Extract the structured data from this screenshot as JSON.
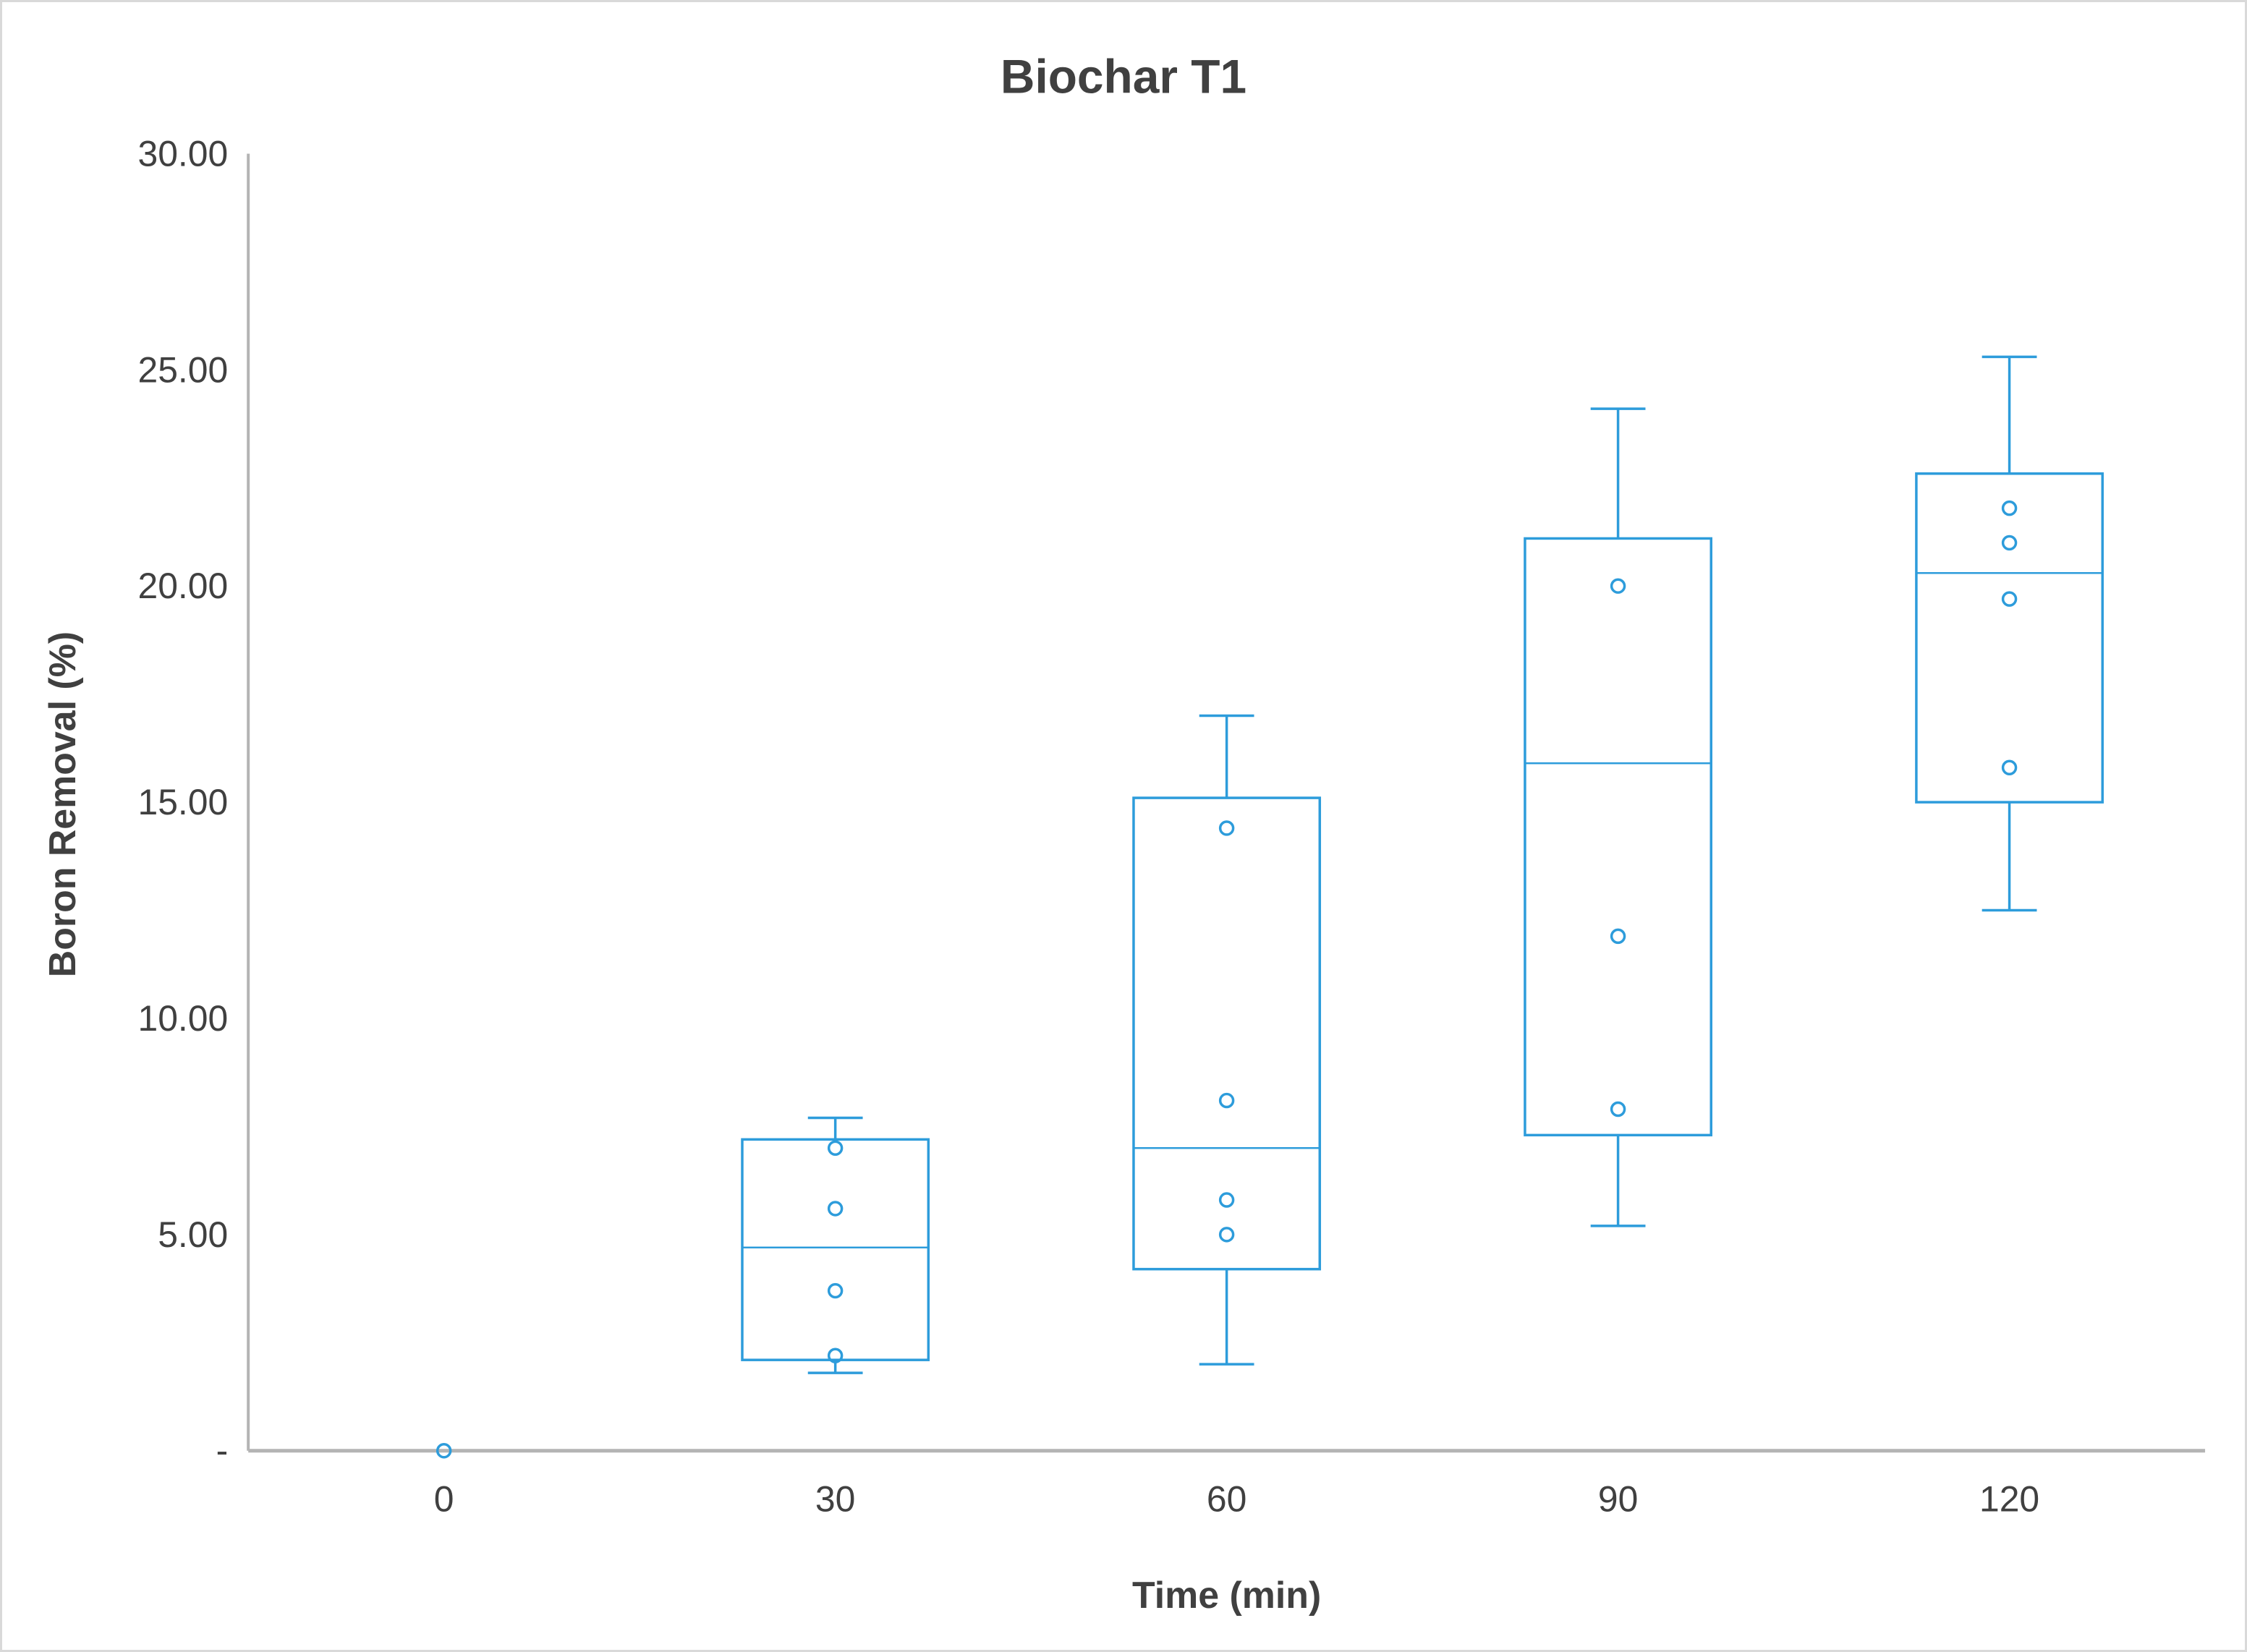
{
  "chart_data": {
    "type": "box",
    "title": "Biochar T1",
    "xlabel": "Time (min)",
    "ylabel": "Boron Removal (%)",
    "ylim": [
      0,
      30
    ],
    "grid": false,
    "legend": null,
    "y_ticks": [
      {
        "value": 30,
        "label": "30.00"
      },
      {
        "value": 25,
        "label": "25.00"
      },
      {
        "value": 20,
        "label": "20.00"
      },
      {
        "value": 15,
        "label": "15.00"
      },
      {
        "value": 10,
        "label": "10.00"
      },
      {
        "value": 5,
        "label": "5.00"
      },
      {
        "value": 0,
        "label": "-"
      }
    ],
    "categories": [
      "0",
      "30",
      "60",
      "90",
      "120"
    ],
    "series": [
      {
        "category": "0",
        "whisker_low": null,
        "q1": null,
        "median": null,
        "q3": null,
        "whisker_high": null,
        "points": [
          0.0
        ]
      },
      {
        "category": "30",
        "whisker_low": 1.8,
        "q1": 2.1,
        "median": 4.7,
        "q3": 7.2,
        "whisker_high": 7.7,
        "points": [
          7.0,
          5.6,
          3.7,
          2.2
        ]
      },
      {
        "category": "60",
        "whisker_low": 2.0,
        "q1": 4.2,
        "median": 7.0,
        "q3": 15.1,
        "whisker_high": 17.0,
        "points": [
          14.4,
          8.1,
          5.8,
          5.0
        ]
      },
      {
        "category": "90",
        "whisker_low": 5.2,
        "q1": 7.3,
        "median": 15.9,
        "q3": 21.1,
        "whisker_high": 24.1,
        "points": [
          20.0,
          11.9,
          7.9
        ]
      },
      {
        "category": "120",
        "whisker_low": 12.5,
        "q1": 15.0,
        "median": 20.3,
        "q3": 22.6,
        "whisker_high": 25.3,
        "points": [
          21.8,
          21.0,
          19.7,
          15.8
        ]
      }
    ],
    "colors": {
      "box": "#2D9CDB",
      "axis": "#B4B4B4",
      "text": "#404040",
      "frame_border": "#D9D9D9"
    }
  }
}
